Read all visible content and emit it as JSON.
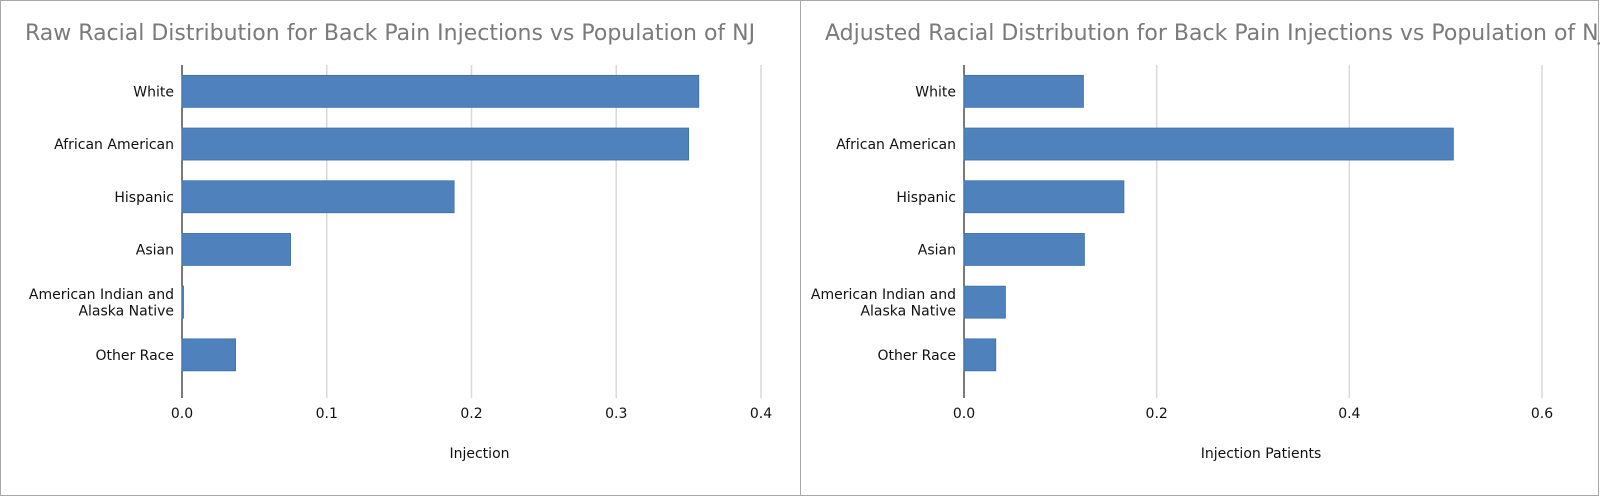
{
  "chart_data": [
    {
      "type": "bar",
      "orientation": "horizontal",
      "title": "Raw Racial Distribution for Back Pain Injections vs Population of NJ",
      "categories": [
        [
          "White"
        ],
        [
          "African American"
        ],
        [
          "Hispanic"
        ],
        [
          "Asian"
        ],
        [
          "American Indian and",
          "Alaska Native"
        ],
        [
          "Other Race"
        ]
      ],
      "values": [
        0.357,
        0.35,
        0.188,
        0.075,
        0.001,
        0.037
      ],
      "xlabel": "Injection",
      "xlim": [
        0,
        0.4
      ],
      "xticks": [
        "0.0",
        "0.1",
        "0.2",
        "0.3",
        "0.4"
      ],
      "grid": "vertical",
      "bar_color": "#4f81bd"
    },
    {
      "type": "bar",
      "orientation": "horizontal",
      "title": "Adjusted Racial Distribution for Back Pain Injections vs Population of NJ",
      "categories": [
        [
          "White"
        ],
        [
          "African American"
        ],
        [
          "Hispanic"
        ],
        [
          "Asian"
        ],
        [
          "American Indian and",
          "Alaska Native"
        ],
        [
          "Other Race"
        ]
      ],
      "values": [
        0.124,
        0.508,
        0.166,
        0.125,
        0.043,
        0.033
      ],
      "xlabel": "Injection Patients",
      "xlim": [
        0,
        0.6
      ],
      "xticks": [
        "0.0",
        "0.2",
        "0.4",
        "0.6"
      ],
      "grid": "vertical",
      "bar_color": "#4f81bd"
    }
  ]
}
